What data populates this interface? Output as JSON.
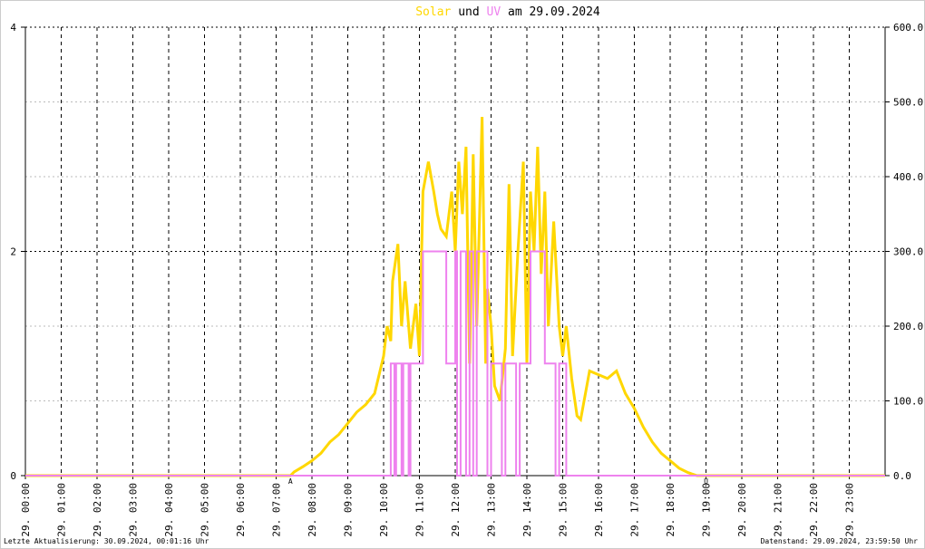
{
  "chart_data": {
    "type": "line",
    "title_words": [
      "und",
      "am 29.09.2024"
    ],
    "xlim": [
      0,
      24
    ],
    "xticks": [
      {
        "value": 0,
        "label": "29. 00:00"
      },
      {
        "value": 1,
        "label": "29. 01:00"
      },
      {
        "value": 2,
        "label": "29. 02:00"
      },
      {
        "value": 3,
        "label": "29. 03:00"
      },
      {
        "value": 4,
        "label": "29. 04:00"
      },
      {
        "value": 5,
        "label": "29. 05:00"
      },
      {
        "value": 6,
        "label": "29. 06:00"
      },
      {
        "value": 7,
        "label": "29. 07:00"
      },
      {
        "value": 8,
        "label": "29. 08:00"
      },
      {
        "value": 9,
        "label": "29. 09:00"
      },
      {
        "value": 10,
        "label": "29. 10:00"
      },
      {
        "value": 11,
        "label": "29. 11:00"
      },
      {
        "value": 12,
        "label": "29. 12:00"
      },
      {
        "value": 13,
        "label": "29. 13:00"
      },
      {
        "value": 14,
        "label": "29. 14:00"
      },
      {
        "value": 15,
        "label": "29. 15:00"
      },
      {
        "value": 16,
        "label": "29. 16:00"
      },
      {
        "value": 17,
        "label": "29. 17:00"
      },
      {
        "value": 18,
        "label": "29. 18:00"
      },
      {
        "value": 19,
        "label": "29. 19:00"
      },
      {
        "value": 20,
        "label": "29. 20:00"
      },
      {
        "value": 21,
        "label": "29. 21:00"
      },
      {
        "value": 22,
        "label": "29. 22:00"
      },
      {
        "value": 23,
        "label": "29. 23:00"
      }
    ],
    "ylim": [
      0,
      4
    ],
    "yticks": [
      0,
      2,
      4
    ],
    "y2lim": [
      0,
      600
    ],
    "y2ticks": [
      {
        "value": 0,
        "label": "0.0"
      },
      {
        "value": 100,
        "label": "100.0"
      },
      {
        "value": 200,
        "label": "200.0"
      },
      {
        "value": 300,
        "label": "300.0"
      },
      {
        "value": 400,
        "label": "400.0"
      },
      {
        "value": 500,
        "label": "500.0"
      },
      {
        "value": 600,
        "label": "600.0"
      }
    ],
    "grid": true,
    "series": [
      {
        "name": "Solar",
        "color": "#ffd700",
        "axis": "y2",
        "x": [
          0,
          7.4,
          7.5,
          7.75,
          8,
          8.25,
          8.5,
          8.75,
          9,
          9.25,
          9.5,
          9.75,
          10,
          10.1,
          10.2,
          10.25,
          10.4,
          10.5,
          10.6,
          10.75,
          10.9,
          11,
          11.1,
          11.25,
          11.4,
          11.5,
          11.6,
          11.75,
          11.9,
          12,
          12.1,
          12.2,
          12.3,
          12.4,
          12.5,
          12.6,
          12.75,
          12.85,
          12.9,
          13,
          13.1,
          13.25,
          13.4,
          13.5,
          13.6,
          13.75,
          13.9,
          14,
          14.1,
          14.2,
          14.3,
          14.4,
          14.5,
          14.6,
          14.75,
          14.9,
          15,
          15.1,
          15.25,
          15.4,
          15.5,
          15.75,
          16,
          16.25,
          16.5,
          16.75,
          17,
          17.25,
          17.5,
          17.75,
          18,
          18.25,
          18.5,
          18.75,
          24
        ],
        "values": [
          0,
          0,
          5,
          12,
          20,
          30,
          45,
          55,
          70,
          85,
          95,
          110,
          160,
          200,
          180,
          260,
          310,
          200,
          260,
          170,
          230,
          160,
          380,
          420,
          380,
          350,
          330,
          320,
          380,
          300,
          420,
          350,
          440,
          150,
          430,
          200,
          480,
          150,
          250,
          200,
          120,
          100,
          170,
          390,
          160,
          300,
          420,
          150,
          380,
          300,
          440,
          270,
          380,
          200,
          340,
          200,
          160,
          200,
          130,
          80,
          75,
          140,
          135,
          130,
          140,
          110,
          90,
          65,
          45,
          30,
          20,
          10,
          4,
          0,
          0
        ]
      },
      {
        "name": "UV",
        "color": "#ee82ee",
        "x": [
          0,
          10.2,
          10.2,
          10.3,
          10.3,
          10.35,
          10.35,
          10.5,
          10.5,
          10.55,
          10.55,
          10.7,
          10.7,
          10.75,
          10.75,
          11.1,
          11.1,
          11.75,
          11.75,
          12.0,
          12.0,
          12.05,
          12.05,
          12.15,
          12.15,
          12.3,
          12.3,
          12.4,
          12.4,
          12.5,
          12.5,
          12.6,
          12.6,
          12.9,
          12.9,
          13.0,
          13.0,
          13.3,
          13.3,
          13.4,
          13.4,
          13.7,
          13.7,
          13.8,
          13.8,
          14.1,
          14.1,
          14.5,
          14.5,
          14.8,
          14.8,
          14.9,
          14.9,
          15.1,
          15.1,
          24
        ],
        "values": [
          0,
          0,
          1,
          1,
          0,
          0,
          1,
          1,
          0,
          0,
          1,
          1,
          0,
          0,
          1,
          1,
          2,
          2,
          1,
          1,
          2,
          2,
          0,
          0,
          2,
          2,
          0,
          0,
          2,
          2,
          0,
          0,
          2,
          2,
          0,
          0,
          1,
          1,
          0,
          0,
          1,
          1,
          0,
          0,
          1,
          1,
          2,
          2,
          1,
          1,
          0,
          0,
          1,
          1,
          0,
          0
        ]
      }
    ],
    "annotations": [
      {
        "x": 7.4,
        "text": "A",
        "color": "#ff0000"
      },
      {
        "x": 19.0,
        "text": "U",
        "color": "#ff0000"
      }
    ],
    "footer_left": "Letzte Aktualisierung: 30.09.2024, 00:01:16 Uhr",
    "footer_right": "Datenstand: 29.09.2024, 23:59:50 Uhr"
  }
}
